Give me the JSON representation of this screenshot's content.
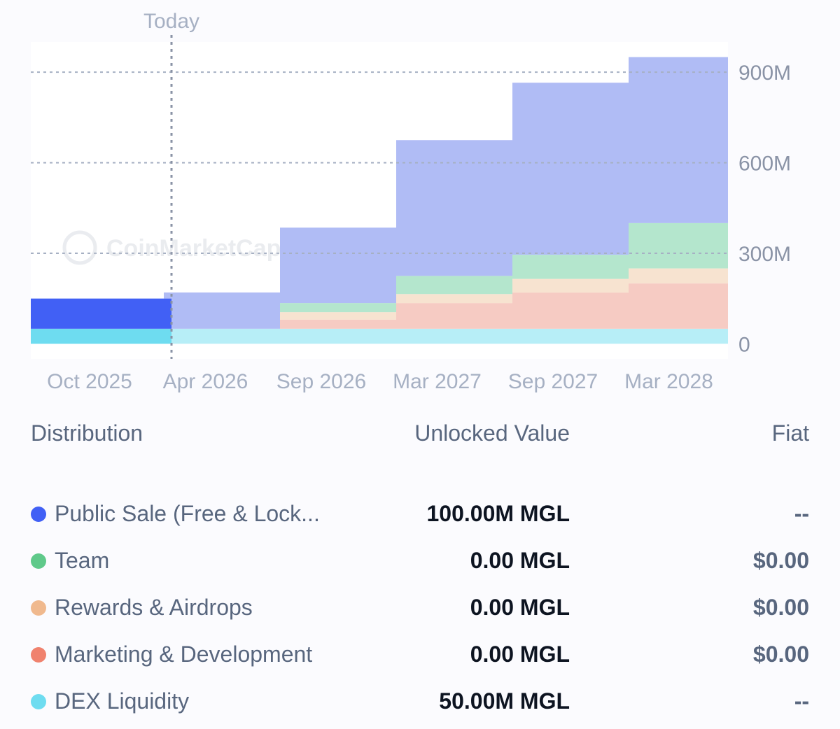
{
  "chart_data": {
    "type": "area",
    "stacked": true,
    "x": [
      "Oct 2025",
      "Apr 2026",
      "Sep 2026",
      "Mar 2027",
      "Sep 2027",
      "Mar 2028"
    ],
    "x_tick_labels": [
      "Oct 2025",
      "Apr 2026",
      "Sep 2026",
      "Mar 2027",
      "Sep 2027",
      "Mar 2028"
    ],
    "y_tick_labels": [
      "900M",
      "600M",
      "300M",
      "0"
    ],
    "ylim": [
      -50,
      1000
    ],
    "y_axis_position": "right",
    "grid": true,
    "today_label": "Today",
    "series": [
      {
        "name": "DEX Liquidity",
        "color": "#6edcf0",
        "future_color": "#b7eef7",
        "x": [
          "Oct 2025",
          "Apr 2026",
          "Sep 2026",
          "Mar 2027",
          "Sep 2027",
          "Mar 2028"
        ],
        "values": [
          50,
          50,
          50,
          50,
          50,
          50
        ]
      },
      {
        "name": "Marketing & Development",
        "color": "#f0826e",
        "future_color": "#f6cbc3",
        "x": [
          "Oct 2025",
          "Apr 2026",
          "Sep 2026",
          "Mar 2027",
          "Sep 2027",
          "Mar 2028"
        ],
        "values": [
          0,
          0,
          30,
          85,
          120,
          150
        ]
      },
      {
        "name": "Rewards & Airdrops",
        "color": "#f0b98e",
        "future_color": "#f7e3d0",
        "x": [
          "Oct 2025",
          "Apr 2026",
          "Sep 2026",
          "Mar 2027",
          "Sep 2027",
          "Mar 2028"
        ],
        "values": [
          0,
          0,
          25,
          30,
          45,
          50
        ]
      },
      {
        "name": "Team",
        "color": "#5fc98a",
        "future_color": "#b4e6cd",
        "x": [
          "Oct 2025",
          "Apr 2026",
          "Sep 2026",
          "Mar 2027",
          "Sep 2027",
          "Mar 2028"
        ],
        "values": [
          0,
          0,
          30,
          60,
          80,
          150
        ]
      },
      {
        "name": "Public Sale (Free & Locked)",
        "color": "#4160f5",
        "future_color": "#b0bcf5",
        "x": [
          "Oct 2025",
          "Apr 2026",
          "Sep 2026",
          "Mar 2027",
          "Sep 2027",
          "Mar 2028"
        ],
        "values": [
          100,
          120,
          250,
          450,
          570,
          550
        ]
      }
    ]
  },
  "watermark": "CoinMarketCap",
  "table": {
    "headers": {
      "distribution": "Distribution",
      "unlocked": "Unlocked Value",
      "fiat": "Fiat"
    },
    "rows": [
      {
        "label": "Public Sale (Free & Lock...",
        "value": "100.00M MGL",
        "fiat": "--",
        "color": "#4160f5"
      },
      {
        "label": "Team",
        "value": "0.00 MGL",
        "fiat": "$0.00",
        "color": "#5fc98a"
      },
      {
        "label": "Rewards & Airdrops",
        "value": "0.00 MGL",
        "fiat": "$0.00",
        "color": "#f0b98e"
      },
      {
        "label": "Marketing & Development",
        "value": "0.00 MGL",
        "fiat": "$0.00",
        "color": "#f0826e"
      },
      {
        "label": "DEX Liquidity",
        "value": "50.00M MGL",
        "fiat": "--",
        "color": "#6edcf0"
      }
    ]
  }
}
